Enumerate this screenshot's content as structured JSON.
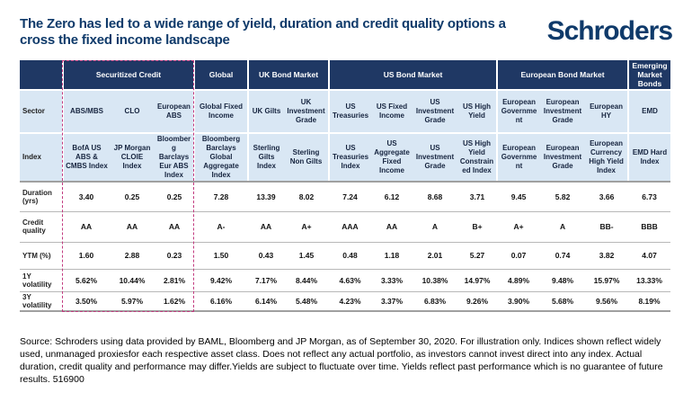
{
  "title": {
    "line1": "The Zero has led to a wide range of yield, duration and credit quality options a",
    "line2": "cross the fixed income landscape"
  },
  "logo": "Schroders",
  "table": {
    "groups": [
      {
        "label": "",
        "span": 1
      },
      {
        "label": "Securitized Credit",
        "span": 3
      },
      {
        "label": "Global",
        "span": 1
      },
      {
        "label": "UK Bond Market",
        "span": 2
      },
      {
        "label": "US Bond Market",
        "span": 4
      },
      {
        "label": "European Bond Market",
        "span": 3
      },
      {
        "label": "Emerging Market Bonds",
        "span": 1
      }
    ],
    "row_labels": [
      "Sector",
      "Index",
      "Duration (yrs)",
      "Credit quality",
      "YTM (%)",
      "1Y volatility",
      "3Y volatility"
    ],
    "sectors": [
      "ABS/MBS",
      "CLO",
      "European ABS",
      "Global Fixed Income",
      "UK Gilts",
      "UK Investment Grade",
      "US Treasuries",
      "US Fixed Income",
      "US Investment Grade",
      "US High Yield",
      "European Government",
      "European Investment Grade",
      "European HY",
      "EMD"
    ],
    "indices": [
      "BofA US ABS & CMBS Index",
      "JP Morgan CLOIE Index",
      "Bloomberg Barclays Eur ABS Index",
      "Bloomberg Barclays Global Aggregate Index",
      "Sterling Gilts Index",
      "Sterling Non Gilts",
      "US Treasuries Index",
      "US Aggregate Fixed Income",
      "US Investment Grade",
      "US High Yield Constrained Index",
      "European Government",
      "European Investment Grade",
      "European Currency High Yield Index",
      "EMD Hard Index"
    ],
    "duration": [
      "3.40",
      "0.25",
      "0.25",
      "7.28",
      "13.39",
      "8.02",
      "7.24",
      "6.12",
      "8.68",
      "3.71",
      "9.45",
      "5.82",
      "3.66",
      "6.73"
    ],
    "credit_quality": [
      "AA",
      "AA",
      "AA",
      "A-",
      "AA",
      "A+",
      "AAA",
      "AA",
      "A",
      "B+",
      "A+",
      "A",
      "BB-",
      "BBB"
    ],
    "ytm": [
      "1.60",
      "2.88",
      "0.23",
      "1.50",
      "0.43",
      "1.45",
      "0.48",
      "1.18",
      "2.01",
      "5.27",
      "0.07",
      "0.74",
      "3.82",
      "4.07"
    ],
    "vol_1y": [
      "5.62%",
      "10.44%",
      "2.81%",
      "9.42%",
      "7.17%",
      "8.44%",
      "4.63%",
      "3.33%",
      "10.38%",
      "14.97%",
      "4.89%",
      "9.48%",
      "15.97%",
      "13.33%"
    ],
    "vol_3y": [
      "3.50%",
      "5.97%",
      "1.62%",
      "6.16%",
      "6.14%",
      "5.48%",
      "4.23%",
      "3.37%",
      "6.83%",
      "9.26%",
      "3.90%",
      "5.68%",
      "9.56%",
      "8.19%"
    ]
  },
  "footer": "Source: Schroders using data provided by BAML, Bloomberg and JP Morgan, as of September 30, 2020. For illustration only. Indices shown reflect widely used, unmanaged proxiesfor each respective asset class. Does not reflect any actual portfolio, as investors cannot invest direct into any index. Actual duration, credit quality and performance may differ.Yields are subject to fluctuate over time. Yields reflect past performance which is no guarantee of future results. 516900",
  "colors": {
    "header_navy": "#1f3864",
    "band_blue": "#d9e7f4",
    "brand_navy": "#0f3a6a",
    "highlight_dash": "#c23a7f",
    "grid_gray": "#b8b8b8"
  }
}
